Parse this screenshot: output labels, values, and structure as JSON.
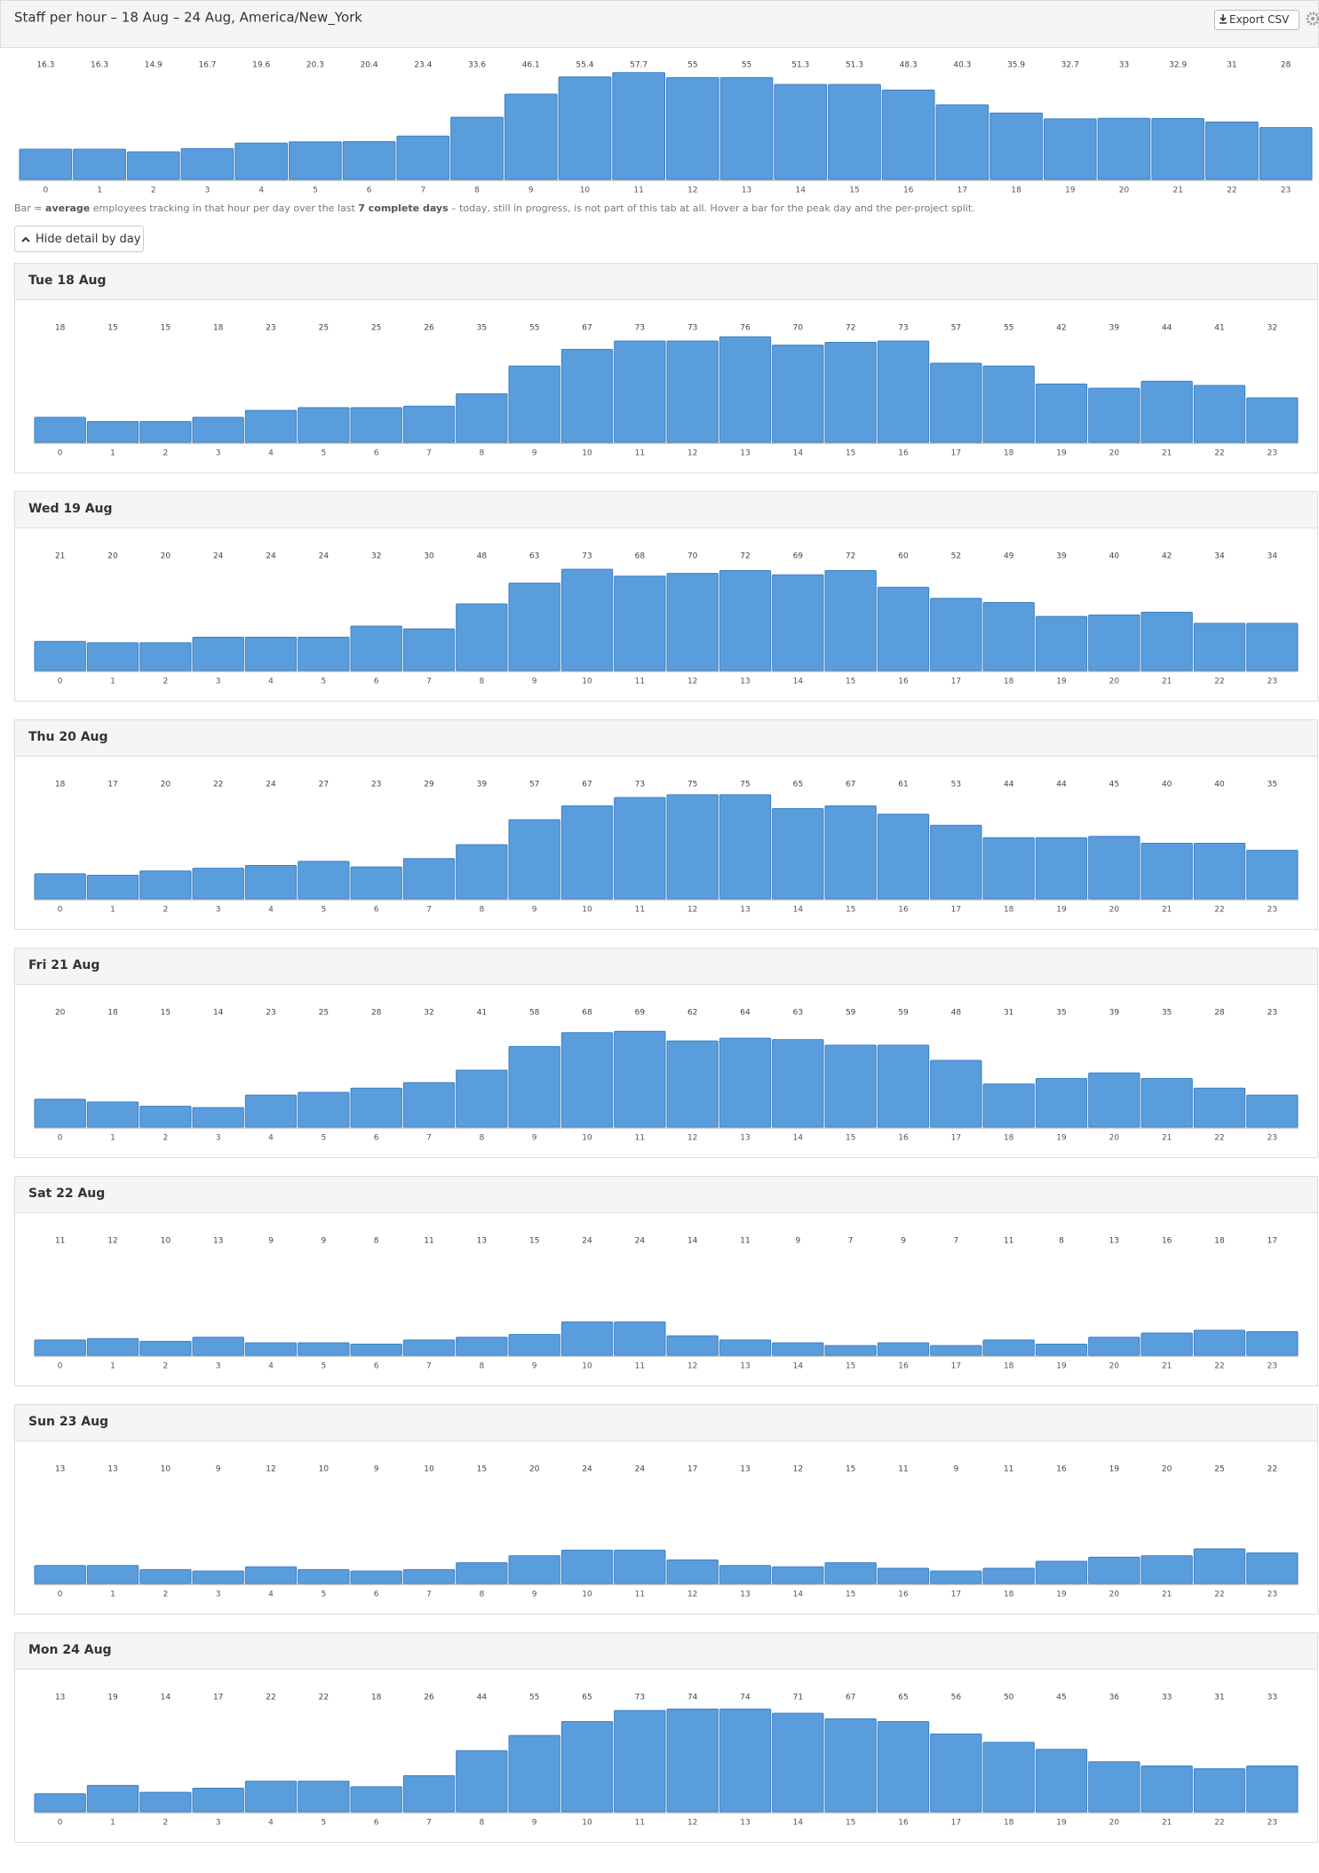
{
  "header": {
    "title": "Staff per hour – 18 Aug – 24 Aug, America/New_York",
    "export_button": "Export CSV"
  },
  "note": [
    "Bar = ",
    "average",
    " employees tracking in that hour per day over the last ",
    "7 complete days",
    " – today, still in progress, is not part of this tab at all. Hover a bar for the peak day and the per-project split."
  ],
  "toggle_button": "Hide detail by day",
  "chart_data": [
    {
      "type": "bar",
      "color": "#5a9ddc",
      "ylim": [
        0,
        60
      ],
      "categories": [
        "0",
        "1",
        "2",
        "3",
        "4",
        "5",
        "6",
        "7",
        "8",
        "9",
        "10",
        "11",
        "12",
        "13",
        "14",
        "15",
        "16",
        "17",
        "18",
        "19",
        "20",
        "21",
        "22",
        "23"
      ],
      "values": [
        16.3,
        16.3,
        14.9,
        16.7,
        19.6,
        20.3,
        20.4,
        23.4,
        33.6,
        46.1,
        55.4,
        57.7,
        55,
        55,
        51.3,
        51.3,
        48.3,
        40.3,
        35.9,
        32.7,
        33,
        32.9,
        31,
        28
      ]
    },
    {
      "type": "bar",
      "title": "Tue 18 Aug",
      "color": "#5a9ddc",
      "ylim": [
        0,
        80
      ],
      "categories": [
        "0",
        "1",
        "2",
        "3",
        "4",
        "5",
        "6",
        "7",
        "8",
        "9",
        "10",
        "11",
        "12",
        "13",
        "14",
        "15",
        "16",
        "17",
        "18",
        "19",
        "20",
        "21",
        "22",
        "23"
      ],
      "values": [
        18,
        15,
        15,
        18,
        23,
        25,
        25,
        26,
        35,
        55,
        67,
        73,
        73,
        76,
        70,
        72,
        73,
        57,
        55,
        42,
        39,
        44,
        41,
        32
      ]
    },
    {
      "type": "bar",
      "title": "Wed 19 Aug",
      "color": "#5a9ddc",
      "ylim": [
        0,
        80
      ],
      "categories": [
        "0",
        "1",
        "2",
        "3",
        "4",
        "5",
        "6",
        "7",
        "8",
        "9",
        "10",
        "11",
        "12",
        "13",
        "14",
        "15",
        "16",
        "17",
        "18",
        "19",
        "20",
        "21",
        "22",
        "23"
      ],
      "values": [
        21,
        20,
        20,
        24,
        24,
        24,
        32,
        30,
        48,
        63,
        73,
        68,
        70,
        72,
        69,
        72,
        60,
        52,
        49,
        39,
        40,
        42,
        34,
        34
      ]
    },
    {
      "type": "bar",
      "title": "Thu 20 Aug",
      "color": "#5a9ddc",
      "ylim": [
        0,
        80
      ],
      "categories": [
        "0",
        "1",
        "2",
        "3",
        "4",
        "5",
        "6",
        "7",
        "8",
        "9",
        "10",
        "11",
        "12",
        "13",
        "14",
        "15",
        "16",
        "17",
        "18",
        "19",
        "20",
        "21",
        "22",
        "23"
      ],
      "values": [
        18,
        17,
        20,
        22,
        24,
        27,
        23,
        29,
        39,
        57,
        67,
        73,
        75,
        75,
        65,
        67,
        61,
        53,
        44,
        44,
        45,
        40,
        40,
        35
      ]
    },
    {
      "type": "bar",
      "title": "Fri 21 Aug",
      "color": "#5a9ddc",
      "ylim": [
        0,
        80
      ],
      "categories": [
        "0",
        "1",
        "2",
        "3",
        "4",
        "5",
        "6",
        "7",
        "8",
        "9",
        "10",
        "11",
        "12",
        "13",
        "14",
        "15",
        "16",
        "17",
        "18",
        "19",
        "20",
        "21",
        "22",
        "23"
      ],
      "values": [
        20,
        18,
        15,
        14,
        23,
        25,
        28,
        32,
        41,
        58,
        68,
        69,
        62,
        64,
        63,
        59,
        59,
        48,
        31,
        35,
        39,
        35,
        28,
        23
      ]
    },
    {
      "type": "bar",
      "title": "Sat 22 Aug",
      "color": "#5a9ddc",
      "ylim": [
        0,
        80
      ],
      "categories": [
        "0",
        "1",
        "2",
        "3",
        "4",
        "5",
        "6",
        "7",
        "8",
        "9",
        "10",
        "11",
        "12",
        "13",
        "14",
        "15",
        "16",
        "17",
        "18",
        "19",
        "20",
        "21",
        "22",
        "23"
      ],
      "values": [
        11,
        12,
        10,
        13,
        9,
        9,
        8,
        11,
        13,
        15,
        24,
        24,
        14,
        11,
        9,
        7,
        9,
        7,
        11,
        8,
        13,
        16,
        18,
        17
      ]
    },
    {
      "type": "bar",
      "title": "Sun 23 Aug",
      "color": "#5a9ddc",
      "ylim": [
        0,
        80
      ],
      "categories": [
        "0",
        "1",
        "2",
        "3",
        "4",
        "5",
        "6",
        "7",
        "8",
        "9",
        "10",
        "11",
        "12",
        "13",
        "14",
        "15",
        "16",
        "17",
        "18",
        "19",
        "20",
        "21",
        "22",
        "23"
      ],
      "values": [
        13,
        13,
        10,
        9,
        12,
        10,
        9,
        10,
        15,
        20,
        24,
        24,
        17,
        13,
        12,
        15,
        11,
        9,
        11,
        16,
        19,
        20,
        25,
        22
      ]
    },
    {
      "type": "bar",
      "title": "Mon 24 Aug",
      "color": "#5a9ddc",
      "ylim": [
        0,
        80
      ],
      "categories": [
        "0",
        "1",
        "2",
        "3",
        "4",
        "5",
        "6",
        "7",
        "8",
        "9",
        "10",
        "11",
        "12",
        "13",
        "14",
        "15",
        "16",
        "17",
        "18",
        "19",
        "20",
        "21",
        "22",
        "23"
      ],
      "values": [
        13,
        19,
        14,
        17,
        22,
        22,
        18,
        26,
        44,
        55,
        65,
        73,
        74,
        74,
        71,
        67,
        65,
        56,
        50,
        45,
        36,
        33,
        31,
        33
      ]
    }
  ]
}
